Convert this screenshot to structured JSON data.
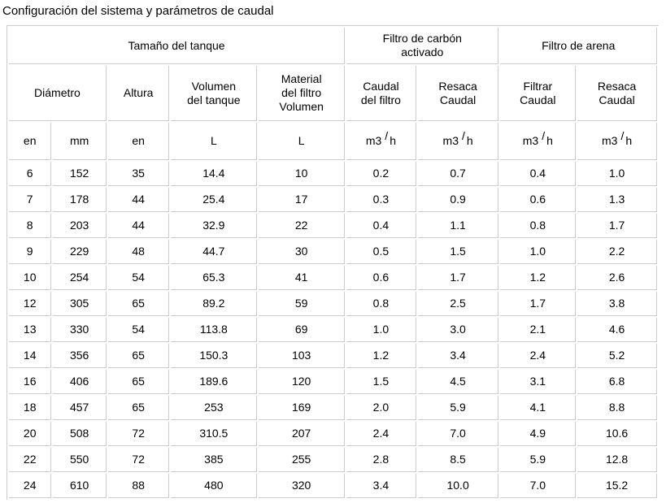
{
  "page_title": "Configuración del sistema y parámetros de caudal",
  "colors": {
    "border": "#cccccc",
    "text": "#000000",
    "background": "#ffffff"
  },
  "table": {
    "group_headers": [
      {
        "lines": [
          "Tamaño del tanque"
        ],
        "colspan": 5
      },
      {
        "lines": [
          "Filtro de carbón",
          "activado"
        ],
        "colspan": 2
      },
      {
        "lines": [
          "Filtro de arena"
        ],
        "colspan": 2
      }
    ],
    "column_headers": [
      {
        "lines": [
          "Diámetro"
        ],
        "colspan": 2
      },
      {
        "lines": [
          "Altura"
        ],
        "colspan": 1
      },
      {
        "lines": [
          "Volumen",
          "del tanque"
        ],
        "colspan": 1
      },
      {
        "lines": [
          "Material",
          "del filtro",
          "Volumen"
        ],
        "colspan": 1
      },
      {
        "lines": [
          "Caudal",
          "del filtro"
        ],
        "colspan": 1
      },
      {
        "lines": [
          "Resaca",
          "Caudal"
        ],
        "colspan": 1
      },
      {
        "lines": [
          "Filtrar",
          "Caudal"
        ],
        "colspan": 1
      },
      {
        "lines": [
          "Resaca",
          "Caudal"
        ],
        "colspan": 1
      }
    ],
    "units": [
      {
        "text": "en"
      },
      {
        "text": "mm"
      },
      {
        "text": "en"
      },
      {
        "text": "L"
      },
      {
        "text": "L"
      },
      {
        "base": "m3",
        "sup": "/",
        "tail": "h"
      },
      {
        "base": "m3",
        "sup": "/",
        "tail": "h"
      },
      {
        "base": "m3",
        "sup": "/",
        "tail": "h"
      },
      {
        "base": "m3",
        "sup": "/",
        "tail": "h"
      }
    ],
    "rows": [
      [
        "6",
        "152",
        "35",
        "14.4",
        "10",
        "0.2",
        "0.7",
        "0.4",
        "1.0"
      ],
      [
        "7",
        "178",
        "44",
        "25.4",
        "17",
        "0.3",
        "0.9",
        "0.6",
        "1.3"
      ],
      [
        "8",
        "203",
        "44",
        "32.9",
        "22",
        "0.4",
        "1.1",
        "0.8",
        "1.7"
      ],
      [
        "9",
        "229",
        "48",
        "44.7",
        "30",
        "0.5",
        "1.5",
        "1.0",
        "2.2"
      ],
      [
        "10",
        "254",
        "54",
        "65.3",
        "41",
        "0.6",
        "1.7",
        "1.2",
        "2.6"
      ],
      [
        "12",
        "305",
        "65",
        "89.2",
        "59",
        "0.8",
        "2.5",
        "1.7",
        "3.8"
      ],
      [
        "13",
        "330",
        "54",
        "113.8",
        "69",
        "1.0",
        "3.0",
        "2.1",
        "4.6"
      ],
      [
        "14",
        "356",
        "65",
        "150.3",
        "103",
        "1.2",
        "3.4",
        "2.4",
        "5.2"
      ],
      [
        "16",
        "406",
        "65",
        "189.6",
        "120",
        "1.5",
        "4.5",
        "3.1",
        "6.8"
      ],
      [
        "18",
        "457",
        "65",
        "253",
        "169",
        "2.0",
        "5.9",
        "4.1",
        "8.8"
      ],
      [
        "20",
        "508",
        "72",
        "310.5",
        "207",
        "2.4",
        "7.0",
        "4.9",
        "10.6"
      ],
      [
        "22",
        "550",
        "72",
        "385",
        "255",
        "2.8",
        "8.5",
        "5.9",
        "12.8"
      ],
      [
        "24",
        "610",
        "88",
        "480",
        "320",
        "3.4",
        "10.0",
        "7.0",
        "15.2"
      ]
    ]
  }
}
